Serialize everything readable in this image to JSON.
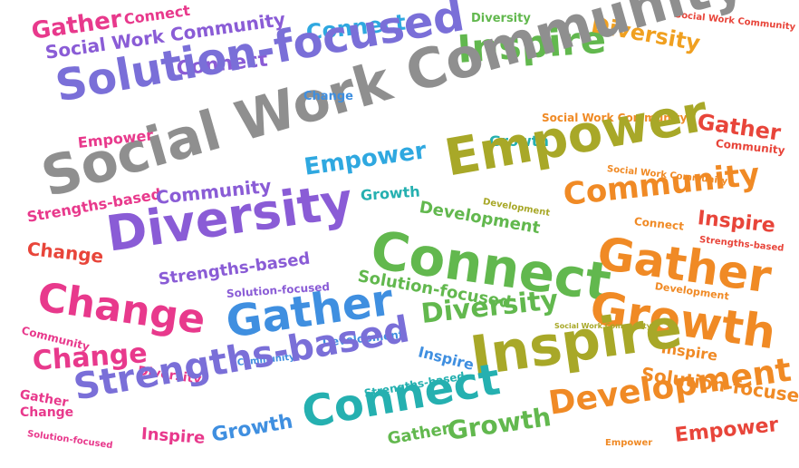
{
  "palette": {
    "pink": "#e8398c",
    "magenta": "#d23a9e",
    "purple": "#8a5cd6",
    "blue": "#3f8fe0",
    "sky": "#2fa8e0",
    "teal": "#25b0b0",
    "green": "#62b84e",
    "olive": "#a8a828",
    "orange": "#f08a25",
    "red": "#e8453a",
    "gray": "#8f8f8f"
  },
  "words": [
    {
      "text": "Gather",
      "color": "#e8398c"
    },
    {
      "text": "Connect",
      "color": "#e8398c"
    },
    {
      "text": "Social Work Community",
      "color": "#8a5cd6"
    },
    {
      "text": "Connect",
      "color": "#2fa8e0"
    },
    {
      "text": "Connect",
      "color": "#8a5cd6"
    },
    {
      "text": "Solution-focused",
      "color": "#7a6fd8"
    },
    {
      "text": "Diversity",
      "color": "#62b84e"
    },
    {
      "text": "Inspire",
      "color": "#62b84e"
    },
    {
      "text": "Diversity",
      "color": "#f0a020"
    },
    {
      "text": "Social Work Community",
      "color": "#e8453a"
    },
    {
      "text": "Social Work Community",
      "color": "#8f8f8f"
    },
    {
      "text": "Change",
      "color": "#3f8fe0"
    },
    {
      "text": "Empower",
      "color": "#e8398c"
    },
    {
      "text": "Growth",
      "color": "#25b0b0"
    },
    {
      "text": "Social Work Community",
      "color": "#f08a25"
    },
    {
      "text": "Gather",
      "color": "#e8453a"
    },
    {
      "text": "Community",
      "color": "#e8453a"
    },
    {
      "text": "Empower",
      "color": "#a8a828"
    },
    {
      "text": "Empower",
      "color": "#2fa8e0"
    },
    {
      "text": "Social Work Community",
      "color": "#f08a25"
    },
    {
      "text": "Growth",
      "color": "#25b0b0"
    },
    {
      "text": "Strengths-based",
      "color": "#e8398c"
    },
    {
      "text": "Community",
      "color": "#8a5cd6"
    },
    {
      "text": "Development",
      "color": "#a8a828"
    },
    {
      "text": "Community",
      "color": "#f08a25"
    },
    {
      "text": "Development",
      "color": "#62b84e"
    },
    {
      "text": "Connect",
      "color": "#f08a25"
    },
    {
      "text": "Inspire",
      "color": "#e8453a"
    },
    {
      "text": "Diversity",
      "color": "#8a5cd6"
    },
    {
      "text": "Connect",
      "color": "#62b84e"
    },
    {
      "text": "Strengths-based",
      "color": "#e8453a"
    },
    {
      "text": "Change",
      "color": "#e8453a"
    },
    {
      "text": "Gather",
      "color": "#f08a25"
    },
    {
      "text": "Strengths-based",
      "color": "#8a5cd6"
    },
    {
      "text": "Solution-focused",
      "color": "#62b84e"
    },
    {
      "text": "Solution-focused",
      "color": "#8a5cd6"
    },
    {
      "text": "Development",
      "color": "#f08a25"
    },
    {
      "text": "Change",
      "color": "#e8398c"
    },
    {
      "text": "Growth",
      "color": "#f08a25"
    },
    {
      "text": "Community",
      "color": "#e8398c"
    },
    {
      "text": "Gather",
      "color": "#3f8fe0"
    },
    {
      "text": "Diversity",
      "color": "#62b84e"
    },
    {
      "text": "Social Work Community",
      "color": "#a8a828"
    },
    {
      "text": "Development",
      "color": "#3f8fe0"
    },
    {
      "text": "Community",
      "color": "#3f8fe0"
    },
    {
      "text": "Inspire",
      "color": "#f08a25"
    },
    {
      "text": "Change",
      "color": "#e8398c"
    },
    {
      "text": "Diversity",
      "color": "#e8398c"
    },
    {
      "text": "Inspire",
      "color": "#3f8fe0"
    },
    {
      "text": "Strengths-based",
      "color": "#7a6fd8"
    },
    {
      "text": "Inspire",
      "color": "#a8a828"
    },
    {
      "text": "Solution-focused",
      "color": "#f08a25"
    },
    {
      "text": "Gather",
      "color": "#e8398c"
    },
    {
      "text": "Change",
      "color": "#e8398c"
    },
    {
      "text": "Strengths-based",
      "color": "#25b0b0"
    },
    {
      "text": "Connect",
      "color": "#25b0b0"
    },
    {
      "text": "Development",
      "color": "#f08a25"
    },
    {
      "text": "Solution-focused",
      "color": "#e8398c"
    },
    {
      "text": "Inspire",
      "color": "#e8398c"
    },
    {
      "text": "Growth",
      "color": "#3f8fe0"
    },
    {
      "text": "Gather",
      "color": "#62b84e"
    },
    {
      "text": "Growth",
      "color": "#62b84e"
    },
    {
      "text": "Empower",
      "color": "#f08a25"
    },
    {
      "text": "Empower",
      "color": "#e8453a"
    }
  ]
}
